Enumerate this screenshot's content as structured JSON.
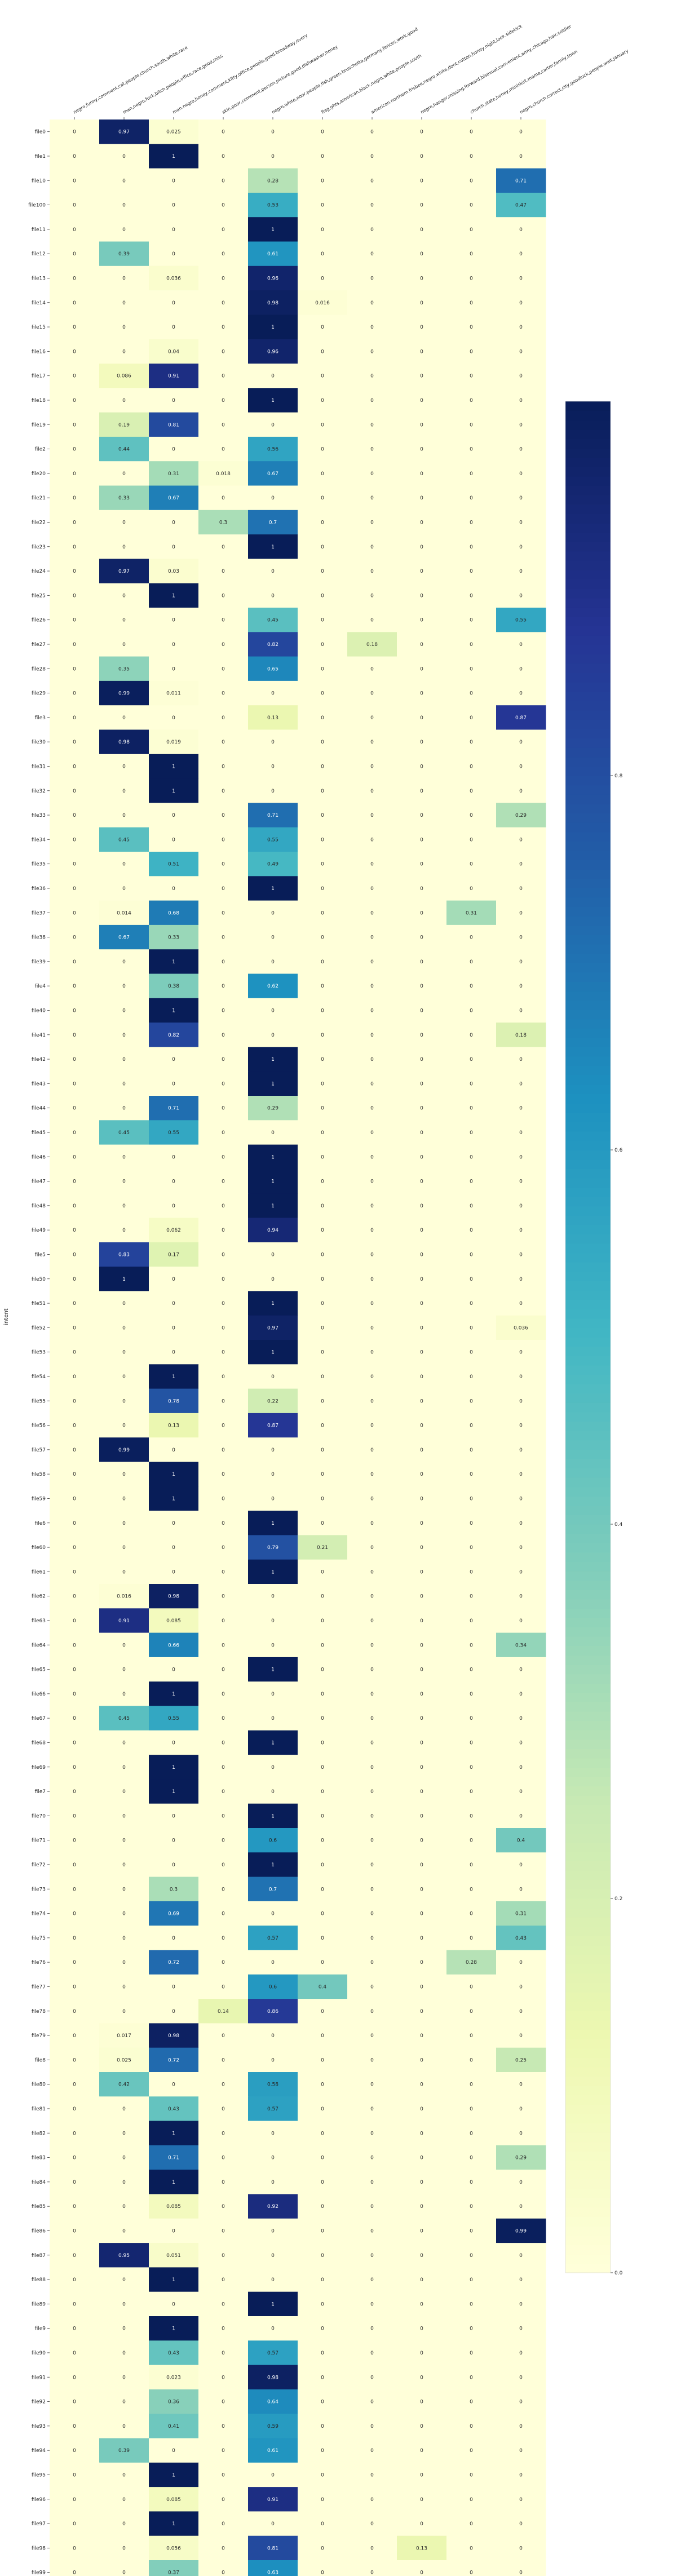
{
  "chart_data": {
    "type": "heatmap",
    "title": "",
    "xlabel": "",
    "ylabel": "intent",
    "columns": [
      "negro,funny,comment,cat,people,church,south,white,race",
      "man,negro,fuck,bitch,people,office,race,good,miss",
      "man,negro,honey,comment,kitty,office,people,good,broadway,every",
      "skin,poor,comment,person,picture,good,dishwasher,honey",
      "negro,white,poor,people,fish,green,bruschetta,germany,fences,work,good",
      "flag,ghts,american,black,negro,white,people,south",
      "american,northern,frisbee,negro,white,dont,cotton,honey,night,look,sidekick",
      "negro,hanger,missing,forward,bisexual,convenient,army,chicago,hair,soldier",
      "church,state,honey,miniskirt,mama,carter,family,town",
      "negro,church,correct,city,goodluck,people,wait,january"
    ],
    "rows": [
      "file0",
      "file1",
      "file10",
      "file100",
      "file11",
      "file12",
      "file13",
      "file14",
      "file15",
      "file16",
      "file17",
      "file18",
      "file19",
      "file2",
      "file20",
      "file21",
      "file22",
      "file23",
      "file24",
      "file25",
      "file26",
      "file27",
      "file28",
      "file29",
      "file3",
      "file30",
      "file31",
      "file32",
      "file33",
      "file34",
      "file35",
      "file36",
      "file37",
      "file38",
      "file39",
      "file4",
      "file40",
      "file41",
      "file42",
      "file43",
      "file44",
      "file45",
      "file46",
      "file47",
      "file48",
      "file49",
      "file5",
      "file50",
      "file51",
      "file52",
      "file53",
      "file54",
      "file55",
      "file56",
      "file57",
      "file58",
      "file59",
      "file6",
      "file60",
      "file61",
      "file62",
      "file63",
      "file64",
      "file65",
      "file66",
      "file67",
      "file68",
      "file69",
      "file7",
      "file70",
      "file71",
      "file72",
      "file73",
      "file74",
      "file75",
      "file76",
      "file77",
      "file78",
      "file79",
      "file8",
      "file80",
      "file81",
      "file82",
      "file83",
      "file84",
      "file85",
      "file86",
      "file87",
      "file88",
      "file89",
      "file9",
      "file90",
      "file91",
      "file92",
      "file93",
      "file94",
      "file95",
      "file96",
      "file97",
      "file98",
      "file99"
    ],
    "values": [
      [
        "0",
        "0.97",
        "0.025",
        "0",
        "0",
        "0",
        "0",
        "0",
        "0",
        "0"
      ],
      [
        "0",
        "0",
        "1",
        "0",
        "0",
        "0",
        "0",
        "0",
        "0",
        "0"
      ],
      [
        "0",
        "0",
        "0",
        "0",
        "0.28",
        "0",
        "0",
        "0",
        "0",
        "0.71"
      ],
      [
        "0",
        "0",
        "0",
        "0",
        "0.53",
        "0",
        "0",
        "0",
        "0",
        "0.47"
      ],
      [
        "0",
        "0",
        "0",
        "0",
        "1",
        "0",
        "0",
        "0",
        "0",
        "0"
      ],
      [
        "0",
        "0.39",
        "0",
        "0",
        "0.61",
        "0",
        "0",
        "0",
        "0",
        "0"
      ],
      [
        "0",
        "0",
        "0.036",
        "0",
        "0.96",
        "0",
        "0",
        "0",
        "0",
        "0"
      ],
      [
        "0",
        "0",
        "0",
        "0",
        "0.98",
        "0.016",
        "0",
        "0",
        "0",
        "0"
      ],
      [
        "0",
        "0",
        "0",
        "0",
        "1",
        "0",
        "0",
        "0",
        "0",
        "0"
      ],
      [
        "0",
        "0",
        "0.04",
        "0",
        "0.96",
        "0",
        "0",
        "0",
        "0",
        "0"
      ],
      [
        "0",
        "0.086",
        "0.91",
        "0",
        "0",
        "0",
        "0",
        "0",
        "0",
        "0"
      ],
      [
        "0",
        "0",
        "0",
        "0",
        "1",
        "0",
        "0",
        "0",
        "0",
        "0"
      ],
      [
        "0",
        "0.19",
        "0.81",
        "0",
        "0",
        "0",
        "0",
        "0",
        "0",
        "0"
      ],
      [
        "0",
        "0.44",
        "0",
        "0",
        "0.56",
        "0",
        "0",
        "0",
        "0",
        "0"
      ],
      [
        "0",
        "0",
        "0.31",
        "0.018",
        "0.67",
        "0",
        "0",
        "0",
        "0",
        "0"
      ],
      [
        "0",
        "0.33",
        "0.67",
        "0",
        "0",
        "0",
        "0",
        "0",
        "0",
        "0"
      ],
      [
        "0",
        "0",
        "0",
        "0.3",
        "0.7",
        "0",
        "0",
        "0",
        "0",
        "0"
      ],
      [
        "0",
        "0",
        "0",
        "0",
        "1",
        "0",
        "0",
        "0",
        "0",
        "0"
      ],
      [
        "0",
        "0.97",
        "0.03",
        "0",
        "0",
        "0",
        "0",
        "0",
        "0",
        "0"
      ],
      [
        "0",
        "0",
        "1",
        "0",
        "0",
        "0",
        "0",
        "0",
        "0",
        "0"
      ],
      [
        "0",
        "0",
        "0",
        "0",
        "0.45",
        "0",
        "0",
        "0",
        "0",
        "0.55"
      ],
      [
        "0",
        "0",
        "0",
        "0",
        "0.82",
        "0",
        "0.18",
        "0",
        "0",
        "0"
      ],
      [
        "0",
        "0.35",
        "0",
        "0",
        "0.65",
        "0",
        "0",
        "0",
        "0",
        "0"
      ],
      [
        "0",
        "0.99",
        "0.011",
        "0",
        "0",
        "0",
        "0",
        "0",
        "0",
        "0"
      ],
      [
        "0",
        "0",
        "0",
        "0",
        "0.13",
        "0",
        "0",
        "0",
        "0",
        "0.87"
      ],
      [
        "0",
        "0.98",
        "0.019",
        "0",
        "0",
        "0",
        "0",
        "0",
        "0",
        "0"
      ],
      [
        "0",
        "0",
        "1",
        "0",
        "0",
        "0",
        "0",
        "0",
        "0",
        "0"
      ],
      [
        "0",
        "0",
        "1",
        "0",
        "0",
        "0",
        "0",
        "0",
        "0",
        "0"
      ],
      [
        "0",
        "0",
        "0",
        "0",
        "0.71",
        "0",
        "0",
        "0",
        "0",
        "0.29"
      ],
      [
        "0",
        "0.45",
        "0",
        "0",
        "0.55",
        "0",
        "0",
        "0",
        "0",
        "0"
      ],
      [
        "0",
        "0",
        "0.51",
        "0",
        "0.49",
        "0",
        "0",
        "0",
        "0",
        "0"
      ],
      [
        "0",
        "0",
        "0",
        "0",
        "1",
        "0",
        "0",
        "0",
        "0",
        "0"
      ],
      [
        "0",
        "0.014",
        "0.68",
        "0",
        "0",
        "0",
        "0",
        "0",
        "0.31",
        "0"
      ],
      [
        "0",
        "0.67",
        "0.33",
        "0",
        "0",
        "0",
        "0",
        "0",
        "0",
        "0"
      ],
      [
        "0",
        "0",
        "1",
        "0",
        "0",
        "0",
        "0",
        "0",
        "0",
        "0"
      ],
      [
        "0",
        "0",
        "0.38",
        "0",
        "0.62",
        "0",
        "0",
        "0",
        "0",
        "0"
      ],
      [
        "0",
        "0",
        "1",
        "0",
        "0",
        "0",
        "0",
        "0",
        "0",
        "0"
      ],
      [
        "0",
        "0",
        "0.82",
        "0",
        "0",
        "0",
        "0",
        "0",
        "0",
        "0.18"
      ],
      [
        "0",
        "0",
        "0",
        "0",
        "1",
        "0",
        "0",
        "0",
        "0",
        "0"
      ],
      [
        "0",
        "0",
        "0",
        "0",
        "1",
        "0",
        "0",
        "0",
        "0",
        "0"
      ],
      [
        "0",
        "0",
        "0.71",
        "0",
        "0.29",
        "0",
        "0",
        "0",
        "0",
        "0"
      ],
      [
        "0",
        "0.45",
        "0.55",
        "0",
        "0",
        "0",
        "0",
        "0",
        "0",
        "0"
      ],
      [
        "0",
        "0",
        "0",
        "0",
        "1",
        "0",
        "0",
        "0",
        "0",
        "0"
      ],
      [
        "0",
        "0",
        "0",
        "0",
        "1",
        "0",
        "0",
        "0",
        "0",
        "0"
      ],
      [
        "0",
        "0",
        "0",
        "0",
        "1",
        "0",
        "0",
        "0",
        "0",
        "0"
      ],
      [
        "0",
        "0",
        "0.062",
        "0",
        "0.94",
        "0",
        "0",
        "0",
        "0",
        "0"
      ],
      [
        "0",
        "0.83",
        "0.17",
        "0",
        "0",
        "0",
        "0",
        "0",
        "0",
        "0"
      ],
      [
        "0",
        "1",
        "0",
        "0",
        "0",
        "0",
        "0",
        "0",
        "0",
        "0"
      ],
      [
        "0",
        "0",
        "0",
        "0",
        "1",
        "0",
        "0",
        "0",
        "0",
        "0"
      ],
      [
        "0",
        "0",
        "0",
        "0",
        "0.97",
        "0",
        "0",
        "0",
        "0",
        "0.036"
      ],
      [
        "0",
        "0",
        "0",
        "0",
        "1",
        "0",
        "0",
        "0",
        "0",
        "0"
      ],
      [
        "0",
        "0",
        "1",
        "0",
        "0",
        "0",
        "0",
        "0",
        "0",
        "0"
      ],
      [
        "0",
        "0",
        "0.78",
        "0",
        "0.22",
        "0",
        "0",
        "0",
        "0",
        "0"
      ],
      [
        "0",
        "0",
        "0.13",
        "0",
        "0.87",
        "0",
        "0",
        "0",
        "0",
        "0"
      ],
      [
        "0",
        "0.99",
        "0",
        "0",
        "0",
        "0",
        "0",
        "0",
        "0",
        "0"
      ],
      [
        "0",
        "0",
        "1",
        "0",
        "0",
        "0",
        "0",
        "0",
        "0",
        "0"
      ],
      [
        "0",
        "0",
        "1",
        "0",
        "0",
        "0",
        "0",
        "0",
        "0",
        "0"
      ],
      [
        "0",
        "0",
        "0",
        "0",
        "1",
        "0",
        "0",
        "0",
        "0",
        "0"
      ],
      [
        "0",
        "0",
        "0",
        "0",
        "0.79",
        "0.21",
        "0",
        "0",
        "0",
        "0"
      ],
      [
        "0",
        "0",
        "0",
        "0",
        "1",
        "0",
        "0",
        "0",
        "0",
        "0"
      ],
      [
        "0",
        "0.016",
        "0.98",
        "0",
        "0",
        "0",
        "0",
        "0",
        "0",
        "0"
      ],
      [
        "0",
        "0.91",
        "0.085",
        "0",
        "0",
        "0",
        "0",
        "0",
        "0",
        "0"
      ],
      [
        "0",
        "0",
        "0.66",
        "0",
        "0",
        "0",
        "0",
        "0",
        "0",
        "0.34"
      ],
      [
        "0",
        "0",
        "0",
        "0",
        "1",
        "0",
        "0",
        "0",
        "0",
        "0"
      ],
      [
        "0",
        "0",
        "1",
        "0",
        "0",
        "0",
        "0",
        "0",
        "0",
        "0"
      ],
      [
        "0",
        "0.45",
        "0.55",
        "0",
        "0",
        "0",
        "0",
        "0",
        "0",
        "0"
      ],
      [
        "0",
        "0",
        "0",
        "0",
        "1",
        "0",
        "0",
        "0",
        "0",
        "0"
      ],
      [
        "0",
        "0",
        "1",
        "0",
        "0",
        "0",
        "0",
        "0",
        "0",
        "0"
      ],
      [
        "0",
        "0",
        "1",
        "0",
        "0",
        "0",
        "0",
        "0",
        "0",
        "0"
      ],
      [
        "0",
        "0",
        "0",
        "0",
        "1",
        "0",
        "0",
        "0",
        "0",
        "0"
      ],
      [
        "0",
        "0",
        "0",
        "0",
        "0.6",
        "0",
        "0",
        "0",
        "0",
        "0.4"
      ],
      [
        "0",
        "0",
        "0",
        "0",
        "1",
        "0",
        "0",
        "0",
        "0",
        "0"
      ],
      [
        "0",
        "0",
        "0.3",
        "0",
        "0.7",
        "0",
        "0",
        "0",
        "0",
        "0"
      ],
      [
        "0",
        "0",
        "0.69",
        "0",
        "0",
        "0",
        "0",
        "0",
        "0",
        "0.31"
      ],
      [
        "0",
        "0",
        "0",
        "0",
        "0.57",
        "0",
        "0",
        "0",
        "0",
        "0.43"
      ],
      [
        "0",
        "0",
        "0.72",
        "0",
        "0",
        "0",
        "0",
        "0",
        "0.28",
        "0"
      ],
      [
        "0",
        "0",
        "0",
        "0",
        "0.6",
        "0.4",
        "0",
        "0",
        "0",
        "0"
      ],
      [
        "0",
        "0",
        "0",
        "0.14",
        "0.86",
        "0",
        "0",
        "0",
        "0",
        "0"
      ],
      [
        "0",
        "0.017",
        "0.98",
        "0",
        "0",
        "0",
        "0",
        "0",
        "0",
        "0"
      ],
      [
        "0",
        "0.025",
        "0.72",
        "0",
        "0",
        "0",
        "0",
        "0",
        "0",
        "0.25"
      ],
      [
        "0",
        "0.42",
        "0",
        "0",
        "0.58",
        "0",
        "0",
        "0",
        "0",
        "0"
      ],
      [
        "0",
        "0",
        "0.43",
        "0",
        "0.57",
        "0",
        "0",
        "0",
        "0",
        "0"
      ],
      [
        "0",
        "0",
        "1",
        "0",
        "0",
        "0",
        "0",
        "0",
        "0",
        "0"
      ],
      [
        "0",
        "0",
        "0.71",
        "0",
        "0",
        "0",
        "0",
        "0",
        "0",
        "0.29"
      ],
      [
        "0",
        "0",
        "1",
        "0",
        "0",
        "0",
        "0",
        "0",
        "0",
        "0"
      ],
      [
        "0",
        "0",
        "0.085",
        "0",
        "0.92",
        "0",
        "0",
        "0",
        "0",
        "0"
      ],
      [
        "0",
        "0",
        "0",
        "0",
        "0",
        "0",
        "0",
        "0",
        "0",
        "0.99"
      ],
      [
        "0",
        "0.95",
        "0.051",
        "0",
        "0",
        "0",
        "0",
        "0",
        "0",
        "0"
      ],
      [
        "0",
        "0",
        "1",
        "0",
        "0",
        "0",
        "0",
        "0",
        "0",
        "0"
      ],
      [
        "0",
        "0",
        "0",
        "0",
        "1",
        "0",
        "0",
        "0",
        "0",
        "0"
      ],
      [
        "0",
        "0",
        "1",
        "0",
        "0",
        "0",
        "0",
        "0",
        "0",
        "0"
      ],
      [
        "0",
        "0",
        "0.43",
        "0",
        "0.57",
        "0",
        "0",
        "0",
        "0",
        "0"
      ],
      [
        "0",
        "0",
        "0.023",
        "0",
        "0.98",
        "0",
        "0",
        "0",
        "0",
        "0"
      ],
      [
        "0",
        "0",
        "0.36",
        "0",
        "0.64",
        "0",
        "0",
        "0",
        "0",
        "0"
      ],
      [
        "0",
        "0",
        "0.41",
        "0",
        "0.59",
        "0",
        "0",
        "0",
        "0",
        "0"
      ],
      [
        "0",
        "0.39",
        "0",
        "0",
        "0.61",
        "0",
        "0",
        "0",
        "0",
        "0"
      ],
      [
        "0",
        "0",
        "1",
        "0",
        "0",
        "0",
        "0",
        "0",
        "0",
        "0"
      ],
      [
        "0",
        "0",
        "0.085",
        "0",
        "0.91",
        "0",
        "0",
        "0",
        "0",
        "0"
      ],
      [
        "0",
        "0",
        "1",
        "0",
        "0",
        "0",
        "0",
        "0",
        "0",
        "0"
      ],
      [
        "0",
        "0",
        "0.056",
        "0",
        "0.81",
        "0",
        "0",
        "0.13",
        "0",
        "0"
      ],
      [
        "0",
        "0",
        "0.37",
        "0",
        "0.63",
        "0",
        "0",
        "0",
        "0",
        "0"
      ]
    ],
    "zlim": [
      0,
      1
    ],
    "colormap": "YlGnBu",
    "colorbar_ticks": [
      "0.0",
      "0.2",
      "0.4",
      "0.6",
      "0.8"
    ]
  }
}
